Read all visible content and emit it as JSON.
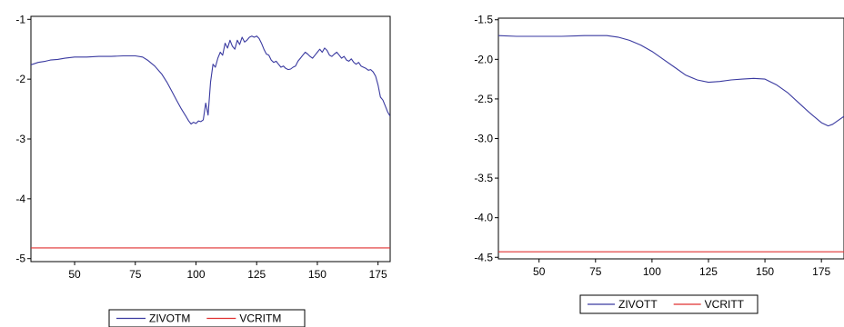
{
  "chart_data": [
    {
      "type": "line",
      "title": "",
      "xlabel": "",
      "ylabel": "",
      "xlim": [
        32,
        180
      ],
      "ylim": [
        -5.05,
        -0.95
      ],
      "xticks": [
        50,
        75,
        100,
        125,
        150,
        175
      ],
      "yticks": [
        -1,
        -2,
        -3,
        -4,
        -5
      ],
      "ytick_labels": [
        "-1",
        "-2",
        "-3",
        "-4",
        "-5"
      ],
      "grid": false,
      "legend_position": "bottom",
      "series": [
        {
          "name": "ZIVOTM",
          "color": "#3a3aa0",
          "x": [
            32,
            35,
            38,
            40,
            43,
            46,
            48,
            50,
            55,
            60,
            65,
            70,
            75,
            78,
            80,
            83,
            86,
            88,
            90,
            92,
            94,
            96,
            97,
            98,
            99,
            100,
            101,
            102,
            103,
            104,
            105,
            106,
            107,
            108,
            109,
            110,
            111,
            112,
            113,
            114,
            115,
            116,
            117,
            118,
            119,
            120,
            121,
            122,
            123,
            124,
            125,
            126,
            127,
            128,
            129,
            130,
            131,
            132,
            133,
            134,
            135,
            136,
            137,
            138,
            139,
            140,
            141,
            142,
            143,
            144,
            145,
            146,
            147,
            148,
            149,
            150,
            151,
            152,
            153,
            154,
            155,
            156,
            157,
            158,
            159,
            160,
            161,
            162,
            163,
            164,
            165,
            166,
            167,
            168,
            169,
            170,
            171,
            172,
            173,
            174,
            175,
            176,
            177,
            178,
            179,
            180
          ],
          "values": [
            -1.76,
            -1.72,
            -1.7,
            -1.68,
            -1.67,
            -1.65,
            -1.64,
            -1.63,
            -1.63,
            -1.62,
            -1.62,
            -1.61,
            -1.61,
            -1.63,
            -1.68,
            -1.78,
            -1.92,
            -2.05,
            -2.2,
            -2.35,
            -2.5,
            -2.63,
            -2.7,
            -2.75,
            -2.72,
            -2.74,
            -2.7,
            -2.71,
            -2.68,
            -2.4,
            -2.6,
            -2.05,
            -1.75,
            -1.8,
            -1.65,
            -1.55,
            -1.6,
            -1.4,
            -1.48,
            -1.35,
            -1.45,
            -1.5,
            -1.35,
            -1.42,
            -1.3,
            -1.38,
            -1.35,
            -1.3,
            -1.28,
            -1.3,
            -1.28,
            -1.32,
            -1.4,
            -1.5,
            -1.58,
            -1.6,
            -1.68,
            -1.72,
            -1.7,
            -1.75,
            -1.8,
            -1.78,
            -1.82,
            -1.84,
            -1.83,
            -1.8,
            -1.78,
            -1.7,
            -1.65,
            -1.6,
            -1.55,
            -1.58,
            -1.62,
            -1.65,
            -1.6,
            -1.55,
            -1.5,
            -1.55,
            -1.48,
            -1.52,
            -1.6,
            -1.62,
            -1.58,
            -1.55,
            -1.6,
            -1.65,
            -1.62,
            -1.68,
            -1.7,
            -1.66,
            -1.72,
            -1.75,
            -1.72,
            -1.78,
            -1.8,
            -1.82,
            -1.85,
            -1.84,
            -1.88,
            -1.95,
            -2.1,
            -2.3,
            -2.35,
            -2.45,
            -2.55,
            -2.62
          ]
        },
        {
          "name": "VCRITM",
          "color": "#e03030",
          "x": [
            32,
            180
          ],
          "values": [
            -4.82,
            -4.82
          ]
        }
      ]
    },
    {
      "type": "line",
      "title": "",
      "xlabel": "",
      "ylabel": "",
      "xlim": [
        32,
        185
      ],
      "ylim": [
        -4.52,
        -1.48
      ],
      "xticks": [
        50,
        75,
        100,
        125,
        150,
        175
      ],
      "xtick_labels": [
        "50",
        "75",
        "100",
        "125",
        "150",
        "175"
      ],
      "yticks": [
        -1.5,
        -2.0,
        -2.5,
        -3.0,
        -3.5,
        -4.0,
        -4.5
      ],
      "ytick_labels": [
        "-1.5",
        "-2.0",
        "-2.5",
        "-3.0",
        "-3.5",
        "-4.0",
        "-4.5"
      ],
      "grid": false,
      "legend_position": "bottom",
      "series": [
        {
          "name": "ZIVOTT",
          "color": "#3a3aa0",
          "x": [
            32,
            40,
            50,
            60,
            70,
            80,
            85,
            90,
            95,
            100,
            105,
            110,
            115,
            120,
            125,
            130,
            135,
            140,
            145,
            150,
            155,
            160,
            165,
            170,
            175,
            178,
            180,
            182,
            185
          ],
          "values": [
            -1.7,
            -1.71,
            -1.71,
            -1.71,
            -1.7,
            -1.7,
            -1.72,
            -1.76,
            -1.82,
            -1.9,
            -2.0,
            -2.1,
            -2.2,
            -2.26,
            -2.29,
            -2.28,
            -2.26,
            -2.25,
            -2.24,
            -2.25,
            -2.32,
            -2.42,
            -2.55,
            -2.68,
            -2.8,
            -2.84,
            -2.82,
            -2.78,
            -2.72
          ]
        },
        {
          "name": "VCRITT",
          "color": "#e03030",
          "x": [
            32,
            185
          ],
          "values": [
            -4.43,
            -4.43
          ]
        }
      ]
    }
  ]
}
